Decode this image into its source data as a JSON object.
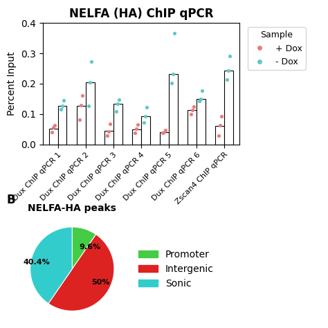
{
  "chart_data": [
    {
      "type": "bar",
      "title": "NELFA (HA) ChIP qPCR",
      "categories": [
        "Dux ChIP qPCR 1",
        "Dux ChIP qPCR 2",
        "Dux ChIP qPCR 3",
        "Dux ChIP qPCR 4",
        "Dux ChIP qPCR 5",
        "Dux ChIP qPCR 6",
        "Zscan4 ChIP qPCR"
      ],
      "ylabel": "Percent Input",
      "ylim": [
        0,
        0.4
      ],
      "yticks": [
        0.0,
        0.1,
        0.2,
        0.3,
        0.4
      ],
      "color": "#ffffff",
      "legend": "upper left",
      "legend_title": "Sample",
      "series": [
        {
          "name": "+ Dox",
          "color": "#e87d7d",
          "values": [
            0.051,
            0.126,
            0.045,
            0.05,
            0.041,
            0.112,
            0.06
          ],
          "points": [
            [
              0.04,
              0.055,
              0.062
            ],
            [
              0.08,
              0.128,
              0.16
            ],
            [
              0.028,
              0.043,
              0.068
            ],
            [
              0.038,
              0.052,
              0.065
            ],
            [
              0.038,
              0.041,
              0.046
            ],
            [
              0.1,
              0.112,
              0.125
            ],
            [
              0.028,
              0.062,
              0.092
            ]
          ]
        },
        {
          "name": "- Dox",
          "color": "#5ec8c8",
          "values": [
            0.126,
            0.205,
            0.134,
            0.092,
            0.231,
            0.149,
            0.242
          ],
          "points": [
            [
              0.115,
              0.126,
              0.146
            ],
            [
              0.126,
              0.205,
              0.272
            ],
            [
              0.108,
              0.134,
              0.148
            ],
            [
              0.072,
              0.092,
              0.122
            ],
            [
              0.201,
              0.231,
              0.367
            ],
            [
              0.143,
              0.15,
              0.178
            ],
            [
              0.213,
              0.242,
              0.29
            ]
          ]
        }
      ]
    },
    {
      "type": "pie",
      "title": "NELFA-HA peaks",
      "annotations": [
        "B"
      ],
      "categories": [
        "Promoter",
        "Intergenic",
        "Sonic"
      ],
      "values": [
        9.6,
        50.0,
        40.4
      ],
      "value_labels": [
        "9.6%",
        "50%",
        "40.4%"
      ],
      "colors": [
        "#44cc44",
        "#dd2222",
        "#33cccc"
      ],
      "data_labels": true,
      "legend": "center left"
    }
  ]
}
